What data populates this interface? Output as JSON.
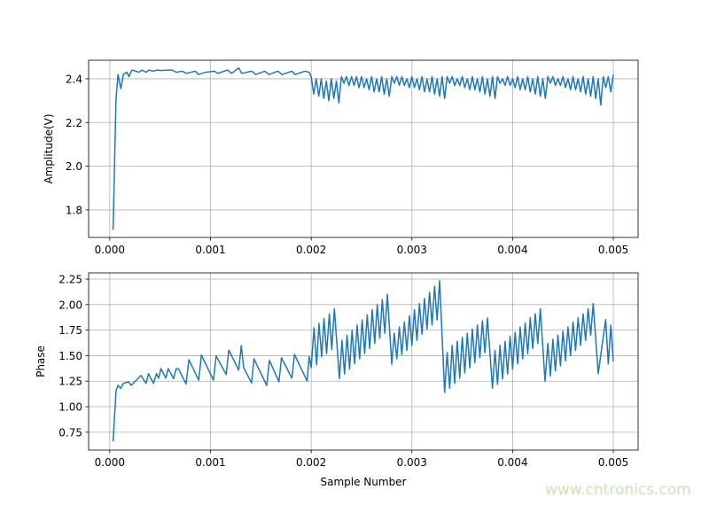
{
  "watermark": "www.cntronics.com",
  "colors": {
    "line": "#1f77b4",
    "grid": "#b0b0b0"
  },
  "chart_data": [
    {
      "type": "line",
      "title": "",
      "xlabel": "",
      "ylabel": "Amplitude(V)",
      "xlim": [
        -0.00021,
        0.005246
      ],
      "ylim": [
        1.674,
        2.485
      ],
      "xticks": [
        "0.000",
        "0.001",
        "0.002",
        "0.003",
        "0.004",
        "0.005"
      ],
      "xtick_values": [
        0,
        0.001,
        0.002,
        0.003,
        0.004,
        0.005
      ],
      "yticks": [
        "1.8",
        "2.0",
        "2.2",
        "2.4"
      ],
      "ytick_values": [
        1.8,
        2.0,
        2.2,
        2.4
      ],
      "grid": true,
      "points": [
        [
          3.3e-05,
          1.709
        ],
        [
          6.2e-05,
          2.308
        ],
        [
          8.2e-05,
          2.42
        ],
        [
          0.00011,
          2.355
        ],
        [
          0.000135,
          2.42
        ],
        [
          0.00017,
          2.43
        ],
        [
          0.00019,
          2.41
        ],
        [
          0.00022,
          2.44
        ],
        [
          0.00026,
          2.435
        ],
        [
          0.00029,
          2.43
        ],
        [
          0.00032,
          2.44
        ],
        [
          0.00036,
          2.43
        ],
        [
          0.00039,
          2.44
        ],
        [
          0.00043,
          2.435
        ],
        [
          0.00047,
          2.44
        ],
        [
          0.00052,
          2.438
        ],
        [
          0.00057,
          2.44
        ],
        [
          0.00062,
          2.44
        ],
        [
          0.00066,
          2.43
        ],
        [
          0.00072,
          2.435
        ],
        [
          0.00076,
          2.425
        ],
        [
          0.00085,
          2.435
        ],
        [
          0.00088,
          2.42
        ],
        [
          0.00095,
          2.43
        ],
        [
          0.00104,
          2.435
        ],
        [
          0.00107,
          2.425
        ],
        [
          0.00117,
          2.44
        ],
        [
          0.00121,
          2.425
        ],
        [
          0.00128,
          2.45
        ],
        [
          0.00131,
          2.425
        ],
        [
          0.00141,
          2.435
        ],
        [
          0.00145,
          2.42
        ],
        [
          0.00154,
          2.435
        ],
        [
          0.00158,
          2.42
        ],
        [
          0.00167,
          2.435
        ],
        [
          0.00171,
          2.42
        ],
        [
          0.00181,
          2.435
        ],
        [
          0.00184,
          2.42
        ],
        [
          0.00194,
          2.435
        ],
        [
          0.00198,
          2.43
        ],
        [
          0.002,
          2.41
        ],
        [
          0.002025,
          2.33
        ],
        [
          0.00205,
          2.4
        ],
        [
          0.002075,
          2.32
        ],
        [
          0.0021,
          2.4
        ],
        [
          0.002125,
          2.31
        ],
        [
          0.00215,
          2.39
        ],
        [
          0.002175,
          2.3
        ],
        [
          0.0022,
          2.4
        ],
        [
          0.002225,
          2.31
        ],
        [
          0.00225,
          2.39
        ],
        [
          0.002275,
          2.29
        ],
        [
          0.0023,
          2.41
        ],
        [
          0.002325,
          2.38
        ],
        [
          0.00235,
          2.41
        ],
        [
          0.002375,
          2.37
        ],
        [
          0.0024,
          2.41
        ],
        [
          0.002425,
          2.37
        ],
        [
          0.00245,
          2.41
        ],
        [
          0.002475,
          2.36
        ],
        [
          0.0025,
          2.41
        ],
        [
          0.002525,
          2.36
        ],
        [
          0.00255,
          2.4
        ],
        [
          0.002575,
          2.35
        ],
        [
          0.0026,
          2.41
        ],
        [
          0.002625,
          2.34
        ],
        [
          0.00265,
          2.4
        ],
        [
          0.002675,
          2.34
        ],
        [
          0.0027,
          2.41
        ],
        [
          0.002725,
          2.33
        ],
        [
          0.00275,
          2.4
        ],
        [
          0.002775,
          2.32
        ],
        [
          0.0028,
          2.41
        ],
        [
          0.002825,
          2.38
        ],
        [
          0.00285,
          2.41
        ],
        [
          0.002875,
          2.37
        ],
        [
          0.0029,
          2.41
        ],
        [
          0.002925,
          2.37
        ],
        [
          0.00295,
          2.4
        ],
        [
          0.002975,
          2.36
        ],
        [
          0.003,
          2.41
        ],
        [
          0.003025,
          2.36
        ],
        [
          0.00305,
          2.4
        ],
        [
          0.003075,
          2.35
        ],
        [
          0.0031,
          2.41
        ],
        [
          0.003125,
          2.34
        ],
        [
          0.00315,
          2.4
        ],
        [
          0.003175,
          2.34
        ],
        [
          0.0032,
          2.41
        ],
        [
          0.003225,
          2.33
        ],
        [
          0.00325,
          2.4
        ],
        [
          0.003275,
          2.32
        ],
        [
          0.0033,
          2.41
        ],
        [
          0.003325,
          2.31
        ],
        [
          0.00335,
          2.41
        ],
        [
          0.003375,
          2.38
        ],
        [
          0.0034,
          2.41
        ],
        [
          0.003425,
          2.37
        ],
        [
          0.00345,
          2.4
        ],
        [
          0.003475,
          2.37
        ],
        [
          0.0035,
          2.41
        ],
        [
          0.003525,
          2.36
        ],
        [
          0.00355,
          2.4
        ],
        [
          0.003575,
          2.35
        ],
        [
          0.0036,
          2.41
        ],
        [
          0.003625,
          2.35
        ],
        [
          0.00365,
          2.4
        ],
        [
          0.003675,
          2.34
        ],
        [
          0.0037,
          2.41
        ],
        [
          0.003725,
          2.33
        ],
        [
          0.00375,
          2.4
        ],
        [
          0.003775,
          2.32
        ],
        [
          0.0038,
          2.41
        ],
        [
          0.003825,
          2.31
        ],
        [
          0.00385,
          2.41
        ],
        [
          0.003875,
          2.38
        ],
        [
          0.0039,
          2.4
        ],
        [
          0.003925,
          2.37
        ],
        [
          0.00395,
          2.41
        ],
        [
          0.003975,
          2.37
        ],
        [
          0.004,
          2.4
        ],
        [
          0.004025,
          2.36
        ],
        [
          0.00405,
          2.41
        ],
        [
          0.004075,
          2.35
        ],
        [
          0.0041,
          2.4
        ],
        [
          0.004125,
          2.35
        ],
        [
          0.00415,
          2.41
        ],
        [
          0.004175,
          2.34
        ],
        [
          0.0042,
          2.4
        ],
        [
          0.004225,
          2.33
        ],
        [
          0.00425,
          2.41
        ],
        [
          0.004275,
          2.32
        ],
        [
          0.0043,
          2.4
        ],
        [
          0.004325,
          2.31
        ],
        [
          0.00435,
          2.41
        ],
        [
          0.004375,
          2.38
        ],
        [
          0.0044,
          2.41
        ],
        [
          0.004425,
          2.37
        ],
        [
          0.00445,
          2.4
        ],
        [
          0.004475,
          2.37
        ],
        [
          0.0045,
          2.41
        ],
        [
          0.004525,
          2.36
        ],
        [
          0.00455,
          2.4
        ],
        [
          0.004575,
          2.35
        ],
        [
          0.0046,
          2.41
        ],
        [
          0.004625,
          2.35
        ],
        [
          0.00465,
          2.4
        ],
        [
          0.004675,
          2.34
        ],
        [
          0.0047,
          2.41
        ],
        [
          0.004725,
          2.33
        ],
        [
          0.00475,
          2.4
        ],
        [
          0.004775,
          2.32
        ],
        [
          0.0048,
          2.41
        ],
        [
          0.004825,
          2.31
        ],
        [
          0.00485,
          2.4
        ],
        [
          0.004875,
          2.28
        ],
        [
          0.0049,
          2.41
        ],
        [
          0.004925,
          2.36
        ],
        [
          0.00495,
          2.41
        ],
        [
          0.004975,
          2.34
        ],
        [
          0.005,
          2.42
        ]
      ]
    },
    {
      "type": "line",
      "title": "",
      "xlabel": "Sample Number",
      "ylabel": "Phase",
      "xlim": [
        -0.00021,
        0.005246
      ],
      "ylim": [
        0.575,
        2.311
      ],
      "xticks": [
        "0.000",
        "0.001",
        "0.002",
        "0.003",
        "0.004",
        "0.005"
      ],
      "xtick_values": [
        0,
        0.001,
        0.002,
        0.003,
        0.004,
        0.005
      ],
      "yticks": [
        "0.75",
        "1.00",
        "1.25",
        "1.50",
        "1.75",
        "2.00",
        "2.25"
      ],
      "ytick_values": [
        0.75,
        1.0,
        1.25,
        1.5,
        1.75,
        2.0,
        2.25
      ],
      "grid": true,
      "points": [
        [
          3.3e-05,
          0.659
        ],
        [
          6.2e-05,
          1.156
        ],
        [
          8.2e-05,
          1.208
        ],
        [
          0.00011,
          1.18
        ],
        [
          0.000135,
          1.228
        ],
        [
          0.000185,
          1.243
        ],
        [
          0.000214,
          1.21
        ],
        [
          0.00031,
          1.306
        ],
        [
          0.00036,
          1.228
        ],
        [
          0.000385,
          1.324
        ],
        [
          0.000434,
          1.228
        ],
        [
          0.000464,
          1.324
        ],
        [
          0.000485,
          1.28
        ],
        [
          0.000508,
          1.373
        ],
        [
          0.000557,
          1.28
        ],
        [
          0.00058,
          1.373
        ],
        [
          0.000634,
          1.275
        ],
        [
          0.00066,
          1.373
        ],
        [
          0.000684,
          1.37
        ],
        [
          0.000757,
          1.223
        ],
        [
          0.000786,
          1.46
        ],
        [
          0.000883,
          1.26
        ],
        [
          0.00091,
          1.506
        ],
        [
          0.00103,
          1.26
        ],
        [
          0.001056,
          1.497
        ],
        [
          0.001156,
          1.315
        ],
        [
          0.001182,
          1.555
        ],
        [
          0.00128,
          1.358
        ],
        [
          0.001306,
          1.599
        ],
        [
          0.00133,
          1.382
        ],
        [
          0.001408,
          1.232
        ],
        [
          0.001432,
          1.469
        ],
        [
          0.001558,
          1.208
        ],
        [
          0.001585,
          1.454
        ],
        [
          0.00168,
          1.243
        ],
        [
          0.001705,
          1.48
        ],
        [
          0.001808,
          1.28
        ],
        [
          0.001834,
          1.512
        ],
        [
          0.00196,
          1.251
        ],
        [
          0.00198,
          1.49
        ],
        [
          0.002,
          1.382
        ],
        [
          0.002028,
          1.773
        ],
        [
          0.002054,
          1.41
        ],
        [
          0.002077,
          1.816
        ],
        [
          0.002104,
          1.49
        ],
        [
          0.002127,
          1.865
        ],
        [
          0.002153,
          1.52
        ],
        [
          0.00218,
          1.909
        ],
        [
          0.002204,
          1.56
        ],
        [
          0.00223,
          1.96
        ],
        [
          0.00228,
          1.275
        ],
        [
          0.002306,
          1.65
        ],
        [
          0.002331,
          1.32
        ],
        [
          0.002356,
          1.7
        ],
        [
          0.002381,
          1.37
        ],
        [
          0.002406,
          1.75
        ],
        [
          0.002431,
          1.42
        ],
        [
          0.002456,
          1.8
        ],
        [
          0.002481,
          1.47
        ],
        [
          0.002506,
          1.85
        ],
        [
          0.002531,
          1.52
        ],
        [
          0.002556,
          1.9
        ],
        [
          0.002581,
          1.57
        ],
        [
          0.002606,
          1.95
        ],
        [
          0.002631,
          1.62
        ],
        [
          0.002656,
          2.0
        ],
        [
          0.002681,
          1.67
        ],
        [
          0.002706,
          2.05
        ],
        [
          0.002731,
          1.72
        ],
        [
          0.002756,
          2.1
        ],
        [
          0.0028,
          1.417
        ],
        [
          0.002825,
          1.72
        ],
        [
          0.00285,
          1.47
        ],
        [
          0.002875,
          1.78
        ],
        [
          0.0029,
          1.51
        ],
        [
          0.002925,
          1.83
        ],
        [
          0.00295,
          1.55
        ],
        [
          0.002975,
          1.89
        ],
        [
          0.003,
          1.6
        ],
        [
          0.003025,
          1.95
        ],
        [
          0.00305,
          1.65
        ],
        [
          0.003075,
          2.01
        ],
        [
          0.0031,
          1.71
        ],
        [
          0.003125,
          2.06
        ],
        [
          0.00315,
          1.76
        ],
        [
          0.003175,
          2.12
        ],
        [
          0.0032,
          1.8
        ],
        [
          0.003225,
          2.18
        ],
        [
          0.00325,
          1.85
        ],
        [
          0.003275,
          2.235
        ],
        [
          0.003325,
          1.14
        ],
        [
          0.00335,
          1.53
        ],
        [
          0.003375,
          1.18
        ],
        [
          0.0034,
          1.6
        ],
        [
          0.003425,
          1.23
        ],
        [
          0.00345,
          1.64
        ],
        [
          0.003475,
          1.28
        ],
        [
          0.0035,
          1.68
        ],
        [
          0.003525,
          1.33
        ],
        [
          0.00355,
          1.72
        ],
        [
          0.003575,
          1.38
        ],
        [
          0.0036,
          1.76
        ],
        [
          0.003625,
          1.43
        ],
        [
          0.00365,
          1.8
        ],
        [
          0.003675,
          1.48
        ],
        [
          0.0037,
          1.84
        ],
        [
          0.003725,
          1.53
        ],
        [
          0.00375,
          1.868
        ],
        [
          0.0038,
          1.18
        ],
        [
          0.003825,
          1.55
        ],
        [
          0.00385,
          1.22
        ],
        [
          0.003875,
          1.6
        ],
        [
          0.0039,
          1.27
        ],
        [
          0.003925,
          1.64
        ],
        [
          0.00395,
          1.32
        ],
        [
          0.003975,
          1.69
        ],
        [
          0.004,
          1.37
        ],
        [
          0.004025,
          1.73
        ],
        [
          0.00405,
          1.42
        ],
        [
          0.004075,
          1.78
        ],
        [
          0.0041,
          1.47
        ],
        [
          0.004125,
          1.82
        ],
        [
          0.00415,
          1.52
        ],
        [
          0.004175,
          1.87
        ],
        [
          0.0042,
          1.57
        ],
        [
          0.004225,
          1.91
        ],
        [
          0.00425,
          1.62
        ],
        [
          0.004275,
          1.96
        ],
        [
          0.004322,
          1.25
        ],
        [
          0.00435,
          1.62
        ],
        [
          0.004375,
          1.3
        ],
        [
          0.0044,
          1.66
        ],
        [
          0.004425,
          1.35
        ],
        [
          0.00445,
          1.7
        ],
        [
          0.004475,
          1.4
        ],
        [
          0.0045,
          1.74
        ],
        [
          0.004525,
          1.45
        ],
        [
          0.00455,
          1.78
        ],
        [
          0.004575,
          1.5
        ],
        [
          0.0046,
          1.83
        ],
        [
          0.004625,
          1.55
        ],
        [
          0.00465,
          1.87
        ],
        [
          0.004675,
          1.6
        ],
        [
          0.0047,
          1.91
        ],
        [
          0.004725,
          1.65
        ],
        [
          0.00475,
          1.96
        ],
        [
          0.004775,
          1.7
        ],
        [
          0.0048,
          2.01
        ],
        [
          0.00485,
          1.324
        ],
        [
          0.004924,
          1.853
        ],
        [
          0.00495,
          1.42
        ],
        [
          0.004975,
          1.8
        ],
        [
          0.005,
          1.445
        ]
      ]
    }
  ]
}
